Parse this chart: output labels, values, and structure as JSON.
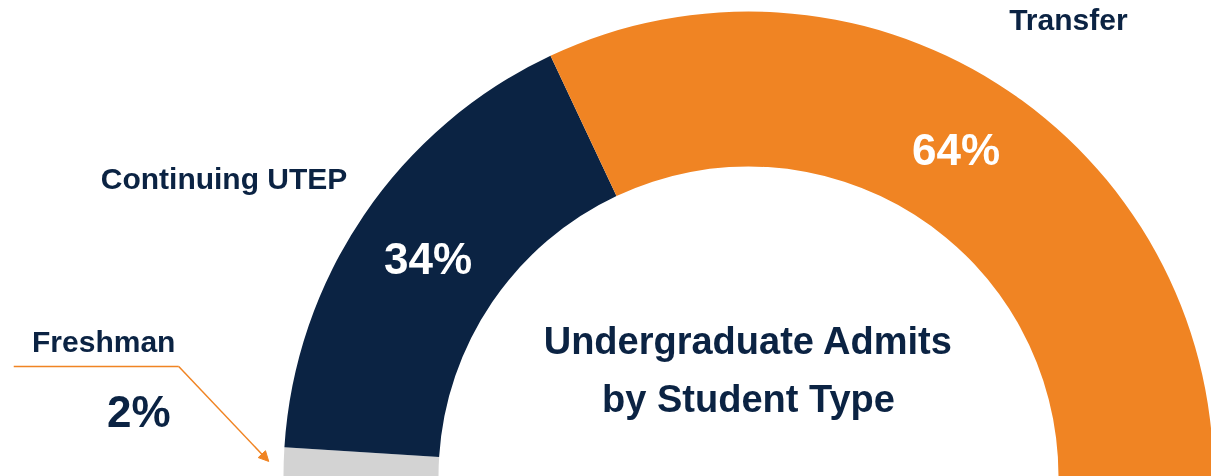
{
  "chart_data": {
    "type": "donut",
    "title": "Undergraduate Admits\nby Student Type",
    "categories": [
      "Freshman",
      "Continuing UTEP",
      "Transfer"
    ],
    "values": [
      2,
      34,
      64
    ],
    "colors": [
      "#d3d3d3",
      "#0b2343",
      "#f08423"
    ],
    "value_labels": [
      "2%",
      "34%",
      "64%"
    ],
    "legend": false
  }
}
